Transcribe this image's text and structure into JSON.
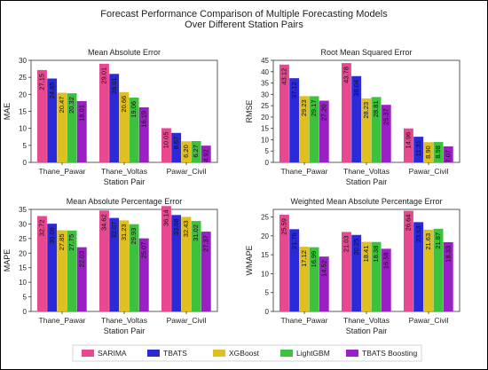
{
  "figure_title": [
    "Forecast Performance Comparison of Multiple Forecasting Models",
    "Over Different Station Pairs"
  ],
  "colors": {
    "SARIMA": "#e8488f",
    "TBATS": "#2a2ad8",
    "XGBoost": "#e0c020",
    "LightGBM": "#3cc23c",
    "TBATS Boosting": "#9a1fc4"
  },
  "legend": [
    "SARIMA",
    "TBATS",
    "XGBoost",
    "LightGBM",
    "TBATS Boosting"
  ],
  "chart_data": [
    {
      "type": "bar",
      "title": "Mean Absolute Error",
      "xlabel": "Station Pair",
      "ylabel": "MAE",
      "ylim": [
        0,
        30
      ],
      "yticks": [
        0,
        5,
        10,
        15,
        20,
        25,
        30
      ],
      "categories": [
        "Thane_Pawar",
        "Thane_Voltas",
        "Pawar_Civil"
      ],
      "series": [
        {
          "name": "SARIMA",
          "values": [
            27.15,
            29.01,
            10.05
          ]
        },
        {
          "name": "TBATS",
          "values": [
            24.65,
            26.01,
            8.67
          ]
        },
        {
          "name": "XGBoost",
          "values": [
            20.47,
            20.66,
            6.2
          ]
        },
        {
          "name": "LightGBM",
          "values": [
            20.32,
            19.06,
            6.27
          ]
        },
        {
          "name": "TBATS Boosting",
          "values": [
            18.01,
            16.19,
            4.92
          ]
        }
      ]
    },
    {
      "type": "bar",
      "title": "Root Mean Squared Error",
      "xlabel": "Station Pair",
      "ylabel": "RMSE",
      "ylim": [
        0,
        45
      ],
      "yticks": [
        0,
        5,
        10,
        15,
        20,
        25,
        30,
        35,
        40,
        45
      ],
      "categories": [
        "Thane_Pawar",
        "Thane_Voltas",
        "Pawar_Civil"
      ],
      "series": [
        {
          "name": "SARIMA",
          "values": [
            43.12,
            43.78,
            14.96
          ]
        },
        {
          "name": "TBATS",
          "values": [
            37.12,
            38.04,
            11.31
          ]
        },
        {
          "name": "XGBoost",
          "values": [
            29.23,
            28.23,
            8.9
          ]
        },
        {
          "name": "LightGBM",
          "values": [
            29.17,
            28.81,
            8.98
          ]
        },
        {
          "name": "TBATS Boosting",
          "values": [
            27.2,
            25.37,
            7.07
          ]
        }
      ]
    },
    {
      "type": "bar",
      "title": "Mean Absolute Percentage Error",
      "xlabel": "Station Pair",
      "ylabel": "MAPE",
      "ylim": [
        0,
        35
      ],
      "yticks": [
        0,
        5,
        10,
        15,
        20,
        25,
        30,
        35
      ],
      "categories": [
        "Thane_Pawar",
        "Thane_Voltas",
        "Pawar_Civil"
      ],
      "series": [
        {
          "name": "SARIMA",
          "values": [
            32.72,
            34.62,
            36.14
          ]
        },
        {
          "name": "TBATS",
          "values": [
            30.09,
            32.07,
            33.08
          ]
        },
        {
          "name": "XGBoost",
          "values": [
            27.85,
            31.23,
            32.43
          ]
        },
        {
          "name": "LightGBM",
          "values": [
            27.75,
            29.93,
            31.02
          ]
        },
        {
          "name": "TBATS Boosting",
          "values": [
            22.03,
            25.07,
            27.37
          ]
        }
      ]
    },
    {
      "type": "bar",
      "title": "Weighted Mean Absolute Percentage Error",
      "xlabel": "Station Pair",
      "ylabel": "WMAPE",
      "ylim": [
        0,
        27
      ],
      "yticks": [
        0,
        5,
        10,
        15,
        20,
        25
      ],
      "categories": [
        "Thane_Pawar",
        "Thane_Voltas",
        "Pawar_Civil"
      ],
      "series": [
        {
          "name": "SARIMA",
          "values": [
            25.59,
            21.03,
            26.64
          ]
        },
        {
          "name": "TBATS",
          "values": [
            21.76,
            20.25,
            23.63
          ]
        },
        {
          "name": "XGBoost",
          "values": [
            17.12,
            18.41,
            21.63
          ]
        },
        {
          "name": "LightGBM",
          "values": [
            16.99,
            18.38,
            21.87
          ]
        },
        {
          "name": "TBATS Boosting",
          "values": [
            14.52,
            16.58,
            18.33
          ]
        }
      ]
    }
  ]
}
